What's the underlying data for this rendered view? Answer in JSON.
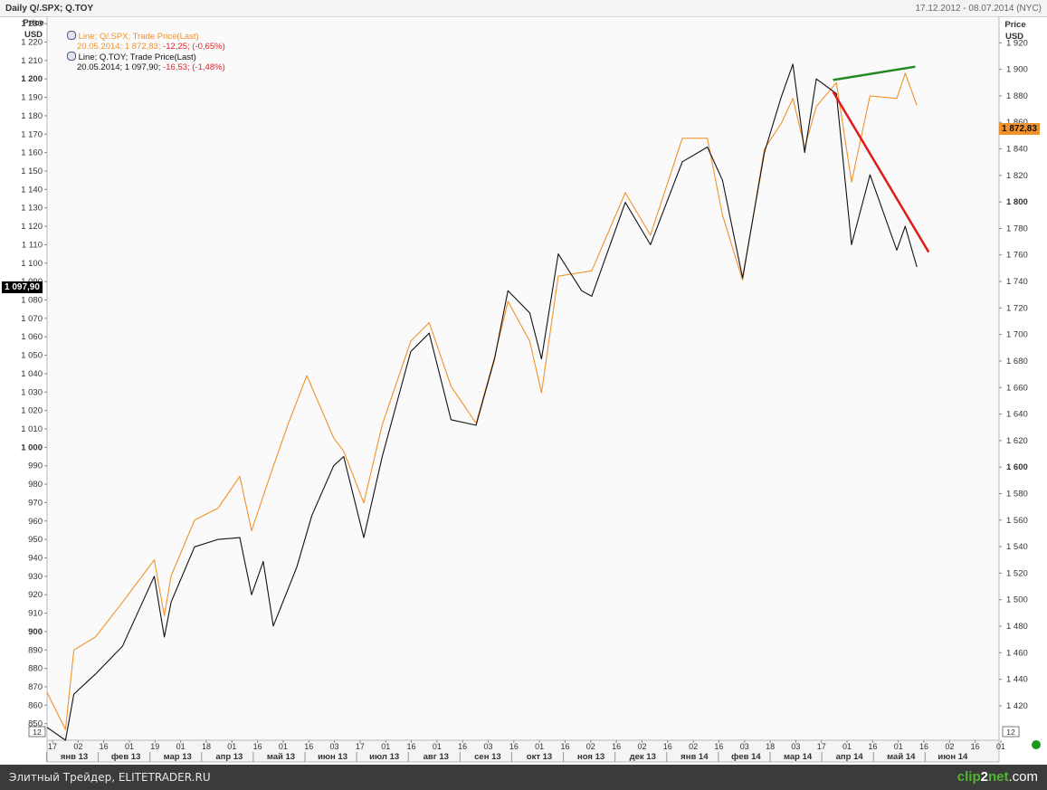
{
  "header": {
    "title": "Daily Q/.SPX; Q.TOY",
    "range": "17.12.2012 - 08.07.2014 (NYC)"
  },
  "axes": {
    "left_label_1": "Price",
    "left_label_2": "USD",
    "right_label_1": "Price",
    "right_label_2": "USD",
    "corner_left": "12",
    "corner_right": "12"
  },
  "legend": {
    "spx_line": "Line; Q/.SPX; Trade Price(Last)",
    "spx_date_value": "20.05.2014; 1 872,83;",
    "spx_change": "-12,25; (-0,65%)",
    "toy_line": "Line; Q.TOY; Trade Price(Last)",
    "toy_date_value": "20.05.2014; 1 097,90;",
    "toy_change": "-16,53; (-1,48%)"
  },
  "badges": {
    "left": "1 097,90",
    "right": "1 872,83"
  },
  "footer": {
    "text": "Элитный Трейдер, ELITETRADER.RU",
    "brand_a": "clip",
    "brand_b": "2",
    "brand_c": "net",
    "brand_d": ".com"
  },
  "colors": {
    "spx": "#f0922b",
    "toy": "#111111",
    "up_trend": "#1f8a1f",
    "down_trend": "#e01a1a",
    "badge_right": "#f0922b",
    "badge_left": "#000000"
  },
  "chart_data": {
    "type": "line",
    "x_range": [
      "2012-12-17",
      "2014-07-08"
    ],
    "left_axis": {
      "ylim": [
        841,
        1234
      ],
      "ticks": [
        850,
        860,
        870,
        880,
        890,
        900,
        910,
        920,
        930,
        940,
        950,
        960,
        970,
        980,
        990,
        1000,
        1010,
        1020,
        1030,
        1040,
        1050,
        1060,
        1070,
        1080,
        1090,
        1100,
        1110,
        1120,
        1130,
        1140,
        1150,
        1160,
        1170,
        1180,
        1190,
        1200,
        1210,
        1220,
        1230
      ],
      "bold": [
        900,
        1000,
        1200
      ]
    },
    "right_axis": {
      "ylim": [
        1394,
        1940
      ],
      "ticks": [
        1420,
        1440,
        1460,
        1480,
        1500,
        1520,
        1540,
        1560,
        1580,
        1600,
        1620,
        1640,
        1660,
        1680,
        1700,
        1720,
        1740,
        1760,
        1780,
        1800,
        1820,
        1840,
        1860,
        1880,
        1900,
        1920
      ],
      "bold": [
        1600,
        1800
      ]
    },
    "x_tick_labels": [
      "17",
      "02",
      "16",
      "01",
      "19",
      "01",
      "18",
      "01",
      "16",
      "01",
      "16",
      "03",
      "17",
      "01",
      "16",
      "01",
      "16",
      "03",
      "16",
      "01",
      "16",
      "02",
      "16",
      "02",
      "16",
      "02",
      "16",
      "03",
      "18",
      "03",
      "17",
      "01",
      "16",
      "01",
      "16",
      "02",
      "16",
      "01"
    ],
    "month_labels": [
      "янв 13",
      "фев 13",
      "мар 13",
      "апр 13",
      "май 13",
      "июн 13",
      "июл 13",
      "авг 13",
      "сен 13",
      "окт 13",
      "ноя 13",
      "дек 13",
      "янв 14",
      "фев 14",
      "мар 14",
      "апр 14",
      "май 14",
      "июн 14"
    ],
    "series": [
      {
        "name": "Q/.SPX",
        "axis": "right",
        "points": [
          [
            "2012-12-17",
            1430
          ],
          [
            "2012-12-28",
            1402
          ],
          [
            "2013-01-02",
            1462
          ],
          [
            "2013-01-15",
            1472
          ],
          [
            "2013-01-31",
            1498
          ],
          [
            "2013-02-19",
            1530
          ],
          [
            "2013-02-25",
            1488
          ],
          [
            "2013-03-01",
            1518
          ],
          [
            "2013-03-15",
            1560
          ],
          [
            "2013-03-29",
            1569
          ],
          [
            "2013-04-11",
            1593
          ],
          [
            "2013-04-18",
            1552
          ],
          [
            "2013-04-30",
            1597
          ],
          [
            "2013-05-10",
            1633
          ],
          [
            "2013-05-21",
            1669
          ],
          [
            "2013-06-06",
            1622
          ],
          [
            "2013-06-12",
            1612
          ],
          [
            "2013-06-24",
            1573
          ],
          [
            "2013-07-05",
            1632
          ],
          [
            "2013-07-22",
            1695
          ],
          [
            "2013-08-02",
            1709
          ],
          [
            "2013-08-15",
            1661
          ],
          [
            "2013-08-30",
            1633
          ],
          [
            "2013-09-10",
            1683
          ],
          [
            "2013-09-18",
            1725
          ],
          [
            "2013-10-01",
            1695
          ],
          [
            "2013-10-08",
            1656
          ],
          [
            "2013-10-18",
            1744
          ],
          [
            "2013-11-07",
            1748
          ],
          [
            "2013-11-27",
            1807
          ],
          [
            "2013-12-12",
            1775
          ],
          [
            "2013-12-31",
            1848
          ],
          [
            "2014-01-15",
            1848
          ],
          [
            "2014-01-24",
            1790
          ],
          [
            "2014-02-05",
            1741
          ],
          [
            "2014-02-18",
            1840
          ],
          [
            "2014-02-28",
            1859
          ],
          [
            "2014-03-07",
            1878
          ],
          [
            "2014-03-14",
            1841
          ],
          [
            "2014-03-21",
            1872
          ],
          [
            "2014-04-02",
            1890
          ],
          [
            "2014-04-11",
            1815
          ],
          [
            "2014-04-22",
            1880
          ],
          [
            "2014-05-08",
            1878
          ],
          [
            "2014-05-13",
            1897
          ],
          [
            "2014-05-20",
            1872.83
          ]
        ]
      },
      {
        "name": "Q.TOY",
        "axis": "left",
        "points": [
          [
            "2012-12-17",
            848
          ],
          [
            "2012-12-28",
            841
          ],
          [
            "2013-01-02",
            866
          ],
          [
            "2013-01-15",
            877
          ],
          [
            "2013-01-31",
            892
          ],
          [
            "2013-02-19",
            930
          ],
          [
            "2013-02-25",
            897
          ],
          [
            "2013-03-01",
            916
          ],
          [
            "2013-03-15",
            946
          ],
          [
            "2013-03-29",
            950
          ],
          [
            "2013-04-11",
            951
          ],
          [
            "2013-04-18",
            920
          ],
          [
            "2013-04-25",
            938
          ],
          [
            "2013-05-01",
            903
          ],
          [
            "2013-05-15",
            935
          ],
          [
            "2013-05-24",
            963
          ],
          [
            "2013-06-06",
            990
          ],
          [
            "2013-06-12",
            995
          ],
          [
            "2013-06-24",
            951
          ],
          [
            "2013-07-05",
            995
          ],
          [
            "2013-07-22",
            1052
          ],
          [
            "2013-08-02",
            1062
          ],
          [
            "2013-08-15",
            1015
          ],
          [
            "2013-08-30",
            1012
          ],
          [
            "2013-09-10",
            1048
          ],
          [
            "2013-09-18",
            1085
          ],
          [
            "2013-10-01",
            1073
          ],
          [
            "2013-10-08",
            1048
          ],
          [
            "2013-10-18",
            1105
          ],
          [
            "2013-11-01",
            1085
          ],
          [
            "2013-11-07",
            1082
          ],
          [
            "2013-11-27",
            1133
          ],
          [
            "2013-12-12",
            1110
          ],
          [
            "2013-12-31",
            1155
          ],
          [
            "2014-01-15",
            1163
          ],
          [
            "2014-01-24",
            1145
          ],
          [
            "2014-02-05",
            1092
          ],
          [
            "2014-02-18",
            1160
          ],
          [
            "2014-02-28",
            1190
          ],
          [
            "2014-03-07",
            1208
          ],
          [
            "2014-03-14",
            1160
          ],
          [
            "2014-03-21",
            1200
          ],
          [
            "2014-04-02",
            1192
          ],
          [
            "2014-04-11",
            1110
          ],
          [
            "2014-04-22",
            1148
          ],
          [
            "2014-05-08",
            1107
          ],
          [
            "2014-05-13",
            1120
          ],
          [
            "2014-05-20",
            1097.9
          ]
        ]
      }
    ],
    "trendlines": [
      {
        "axis": "right",
        "from": [
          "2014-03-31",
          1892
        ],
        "to": [
          "2014-05-19",
          1902
        ]
      },
      {
        "axis": "left",
        "from": [
          "2014-03-31",
          1193
        ],
        "to": [
          "2014-05-27",
          1106
        ]
      }
    ]
  }
}
